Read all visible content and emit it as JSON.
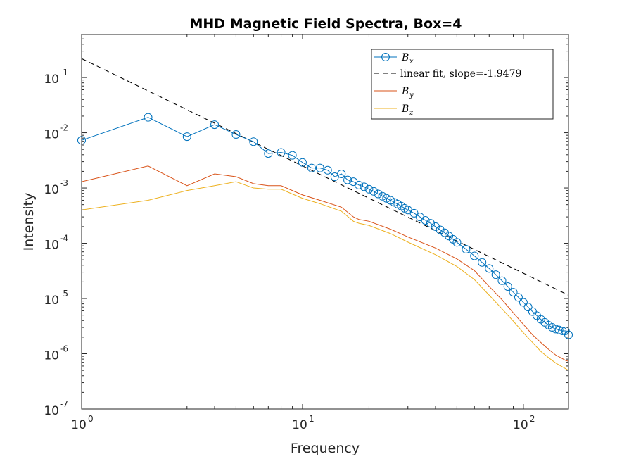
{
  "chart_data": {
    "type": "line",
    "title": "MHD Magnetic Field Spectra, Box=4",
    "xlabel": "Frequency",
    "ylabel": "Intensity",
    "xscale": "log",
    "yscale": "log",
    "xlim": [
      1,
      160
    ],
    "ylim": [
      1e-07,
      0.6
    ],
    "grid": false,
    "legend_position": "top-right",
    "x_ticks": [
      {
        "base": "10",
        "exp": "0",
        "value": 1
      },
      {
        "base": "10",
        "exp": "1",
        "value": 10
      },
      {
        "base": "10",
        "exp": "2",
        "value": 100
      }
    ],
    "y_ticks": [
      {
        "base": "10",
        "exp": "-7",
        "value": 1e-07
      },
      {
        "base": "10",
        "exp": "-6",
        "value": 1e-06
      },
      {
        "base": "10",
        "exp": "-5",
        "value": 1e-05
      },
      {
        "base": "10",
        "exp": "-4",
        "value": 0.0001
      },
      {
        "base": "10",
        "exp": "-3",
        "value": 0.001
      },
      {
        "base": "10",
        "exp": "-2",
        "value": 0.01
      },
      {
        "base": "10",
        "exp": "-1",
        "value": 0.1
      }
    ],
    "series": [
      {
        "key": "bx",
        "legend_main": "B",
        "legend_sub": "x",
        "color": "#0072BD",
        "marker": "circle",
        "x": [
          1,
          2,
          3,
          4,
          5,
          6,
          7,
          8,
          9,
          10,
          11,
          12,
          13,
          14,
          15,
          16,
          17,
          18,
          19,
          20,
          21,
          22,
          23,
          24,
          25,
          26,
          27,
          28,
          29,
          30,
          32,
          34,
          36,
          38,
          40,
          42,
          44,
          46,
          48,
          50,
          55,
          60,
          65,
          70,
          75,
          80,
          85,
          90,
          95,
          100,
          105,
          110,
          115,
          120,
          125,
          130,
          135,
          140,
          145,
          150,
          155,
          160
        ],
        "values": [
          0.0073,
          0.019,
          0.0085,
          0.014,
          0.0093,
          0.0069,
          0.0042,
          0.0044,
          0.0039,
          0.0029,
          0.0023,
          0.0023,
          0.0021,
          0.0016,
          0.0018,
          0.0014,
          0.0013,
          0.00113,
          0.00105,
          0.00095,
          0.00087,
          0.00078,
          0.00071,
          0.00065,
          0.0006,
          0.00055,
          0.00051,
          0.00047,
          0.00043,
          0.0004,
          0.00035,
          0.0003,
          0.00026,
          0.00023,
          0.0002,
          0.000175,
          0.000155,
          0.000135,
          0.000118,
          0.000104,
          7.8e-05,
          5.9e-05,
          4.5e-05,
          3.5e-05,
          2.7e-05,
          2.1e-05,
          1.65e-05,
          1.3e-05,
          1.05e-05,
          8.5e-06,
          7e-06,
          5.8e-06,
          4.9e-06,
          4.2e-06,
          3.7e-06,
          3.3e-06,
          3e-06,
          2.8e-06,
          2.7e-06,
          2.6e-06,
          2.6e-06,
          2.2e-06
        ]
      },
      {
        "key": "fit",
        "legend_main": "linear fit, slope=-1.9479",
        "color": "#000000",
        "dashed": true,
        "x": [
          1,
          160
        ],
        "values": [
          0.22,
          1.15e-05
        ]
      },
      {
        "key": "by",
        "legend_main": "B",
        "legend_sub": "y",
        "color": "#D95319",
        "x": [
          1,
          2,
          3,
          4,
          5,
          6,
          7,
          8,
          10,
          12,
          15,
          17,
          18,
          20,
          25,
          30,
          40,
          50,
          60,
          70,
          80,
          90,
          100,
          110,
          120,
          130,
          140,
          150,
          155,
          160
        ],
        "values": [
          0.0013,
          0.0025,
          0.0011,
          0.0018,
          0.0016,
          0.0012,
          0.0011,
          0.0011,
          0.00075,
          0.0006,
          0.00045,
          0.0003,
          0.00027,
          0.00025,
          0.00018,
          0.00013,
          8.2e-05,
          5.2e-05,
          3.2e-05,
          1.65e-05,
          9.5e-06,
          5.5e-06,
          3.4e-06,
          2.2e-06,
          1.6e-06,
          1.2e-06,
          9.5e-07,
          8.2e-07,
          7.6e-07,
          7.3e-07
        ]
      },
      {
        "key": "bz",
        "legend_main": "B",
        "legend_sub": "z",
        "color": "#EDB120",
        "x": [
          1,
          2,
          3,
          4,
          5,
          6,
          7,
          8,
          10,
          12,
          15,
          17,
          18,
          20,
          25,
          30,
          40,
          50,
          60,
          70,
          80,
          90,
          100,
          110,
          120,
          130,
          140,
          150,
          155,
          160
        ],
        "values": [
          0.0004,
          0.0006,
          0.0009,
          0.0011,
          0.0013,
          0.001,
          0.00095,
          0.00095,
          0.00065,
          0.00052,
          0.00038,
          0.00025,
          0.00023,
          0.00021,
          0.00015,
          0.000105,
          6.2e-05,
          3.8e-05,
          2.2e-05,
          1.15e-05,
          6.5e-06,
          3.9e-06,
          2.4e-06,
          1.6e-06,
          1.1e-06,
          8.5e-07,
          6.8e-07,
          5.8e-07,
          5.4e-07,
          5e-07
        ]
      }
    ]
  }
}
